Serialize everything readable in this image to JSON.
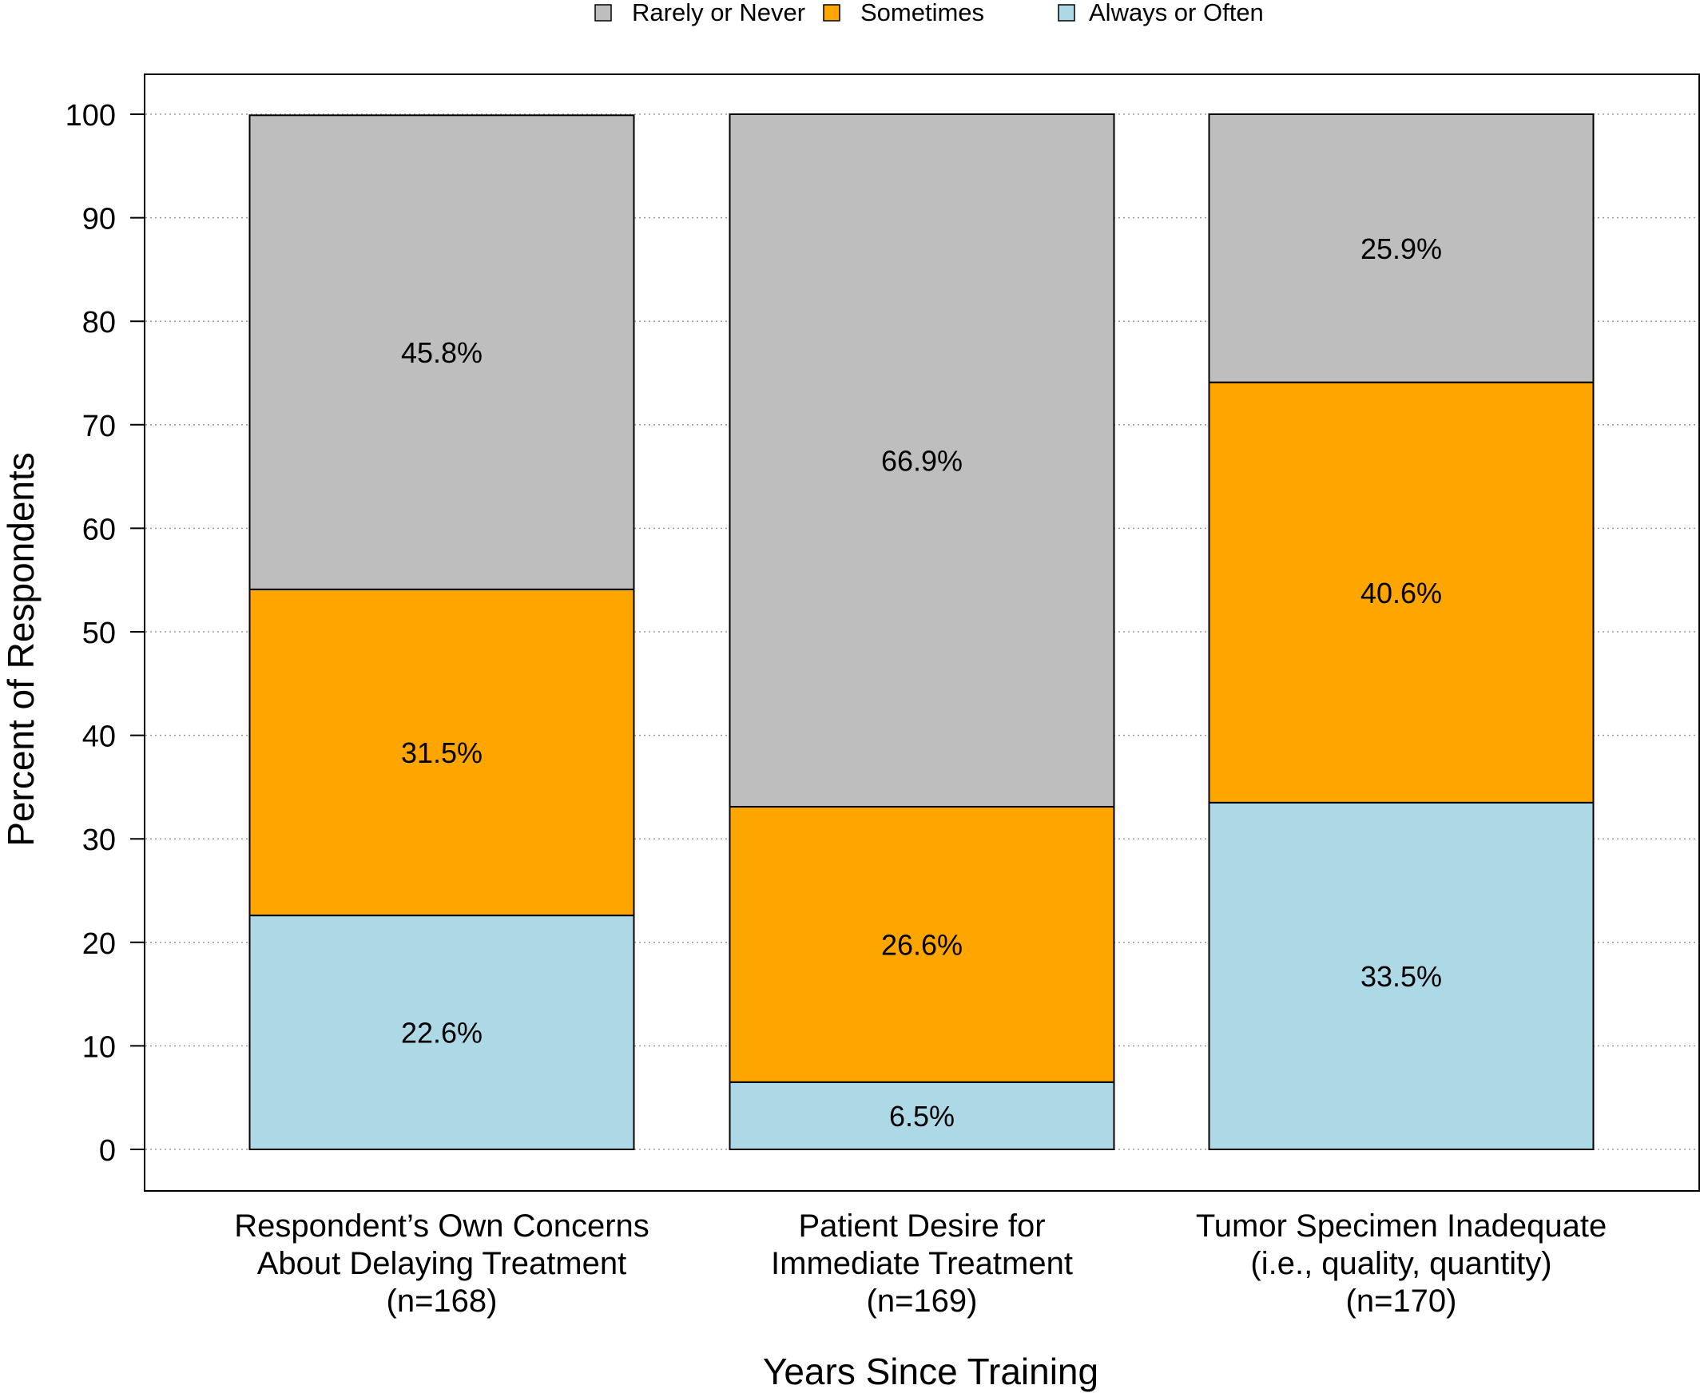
{
  "chart_data": {
    "type": "bar",
    "stacked": true,
    "xlabel": "Years Since Training",
    "ylabel": "Percent of Respondents",
    "ylim": [
      0,
      100
    ],
    "yticks": [
      0,
      10,
      20,
      30,
      40,
      50,
      60,
      70,
      80,
      90,
      100
    ],
    "grid": "horizontal dotted",
    "legend_position": "top",
    "categories": [
      [
        "Respondent’s Own Concerns",
        "About Delaying Treatment",
        "(n=168)"
      ],
      [
        "Patient Desire for",
        "Immediate Treatment",
        "(n=169)"
      ],
      [
        "Tumor Specimen Inadequate",
        "(i.e., quality, quantity)",
        "(n=170)"
      ]
    ],
    "series": [
      {
        "name": "Always or Often",
        "color": "#add8e6",
        "values": [
          22.6,
          6.5,
          33.5
        ],
        "labels": [
          "22.6%",
          "6.5%",
          "33.5%"
        ]
      },
      {
        "name": "Sometimes",
        "color": "#ffa500",
        "values": [
          31.5,
          26.6,
          40.6
        ],
        "labels": [
          "31.5%",
          "26.6%",
          "40.6%"
        ]
      },
      {
        "name": "Rarely or Never",
        "color": "#bebebe",
        "values": [
          45.8,
          66.9,
          25.9
        ],
        "labels": [
          "45.8%",
          "66.9%",
          "25.9%"
        ]
      }
    ],
    "legend_order": [
      "Rarely or Never",
      "Sometimes",
      "Always or Often"
    ]
  }
}
